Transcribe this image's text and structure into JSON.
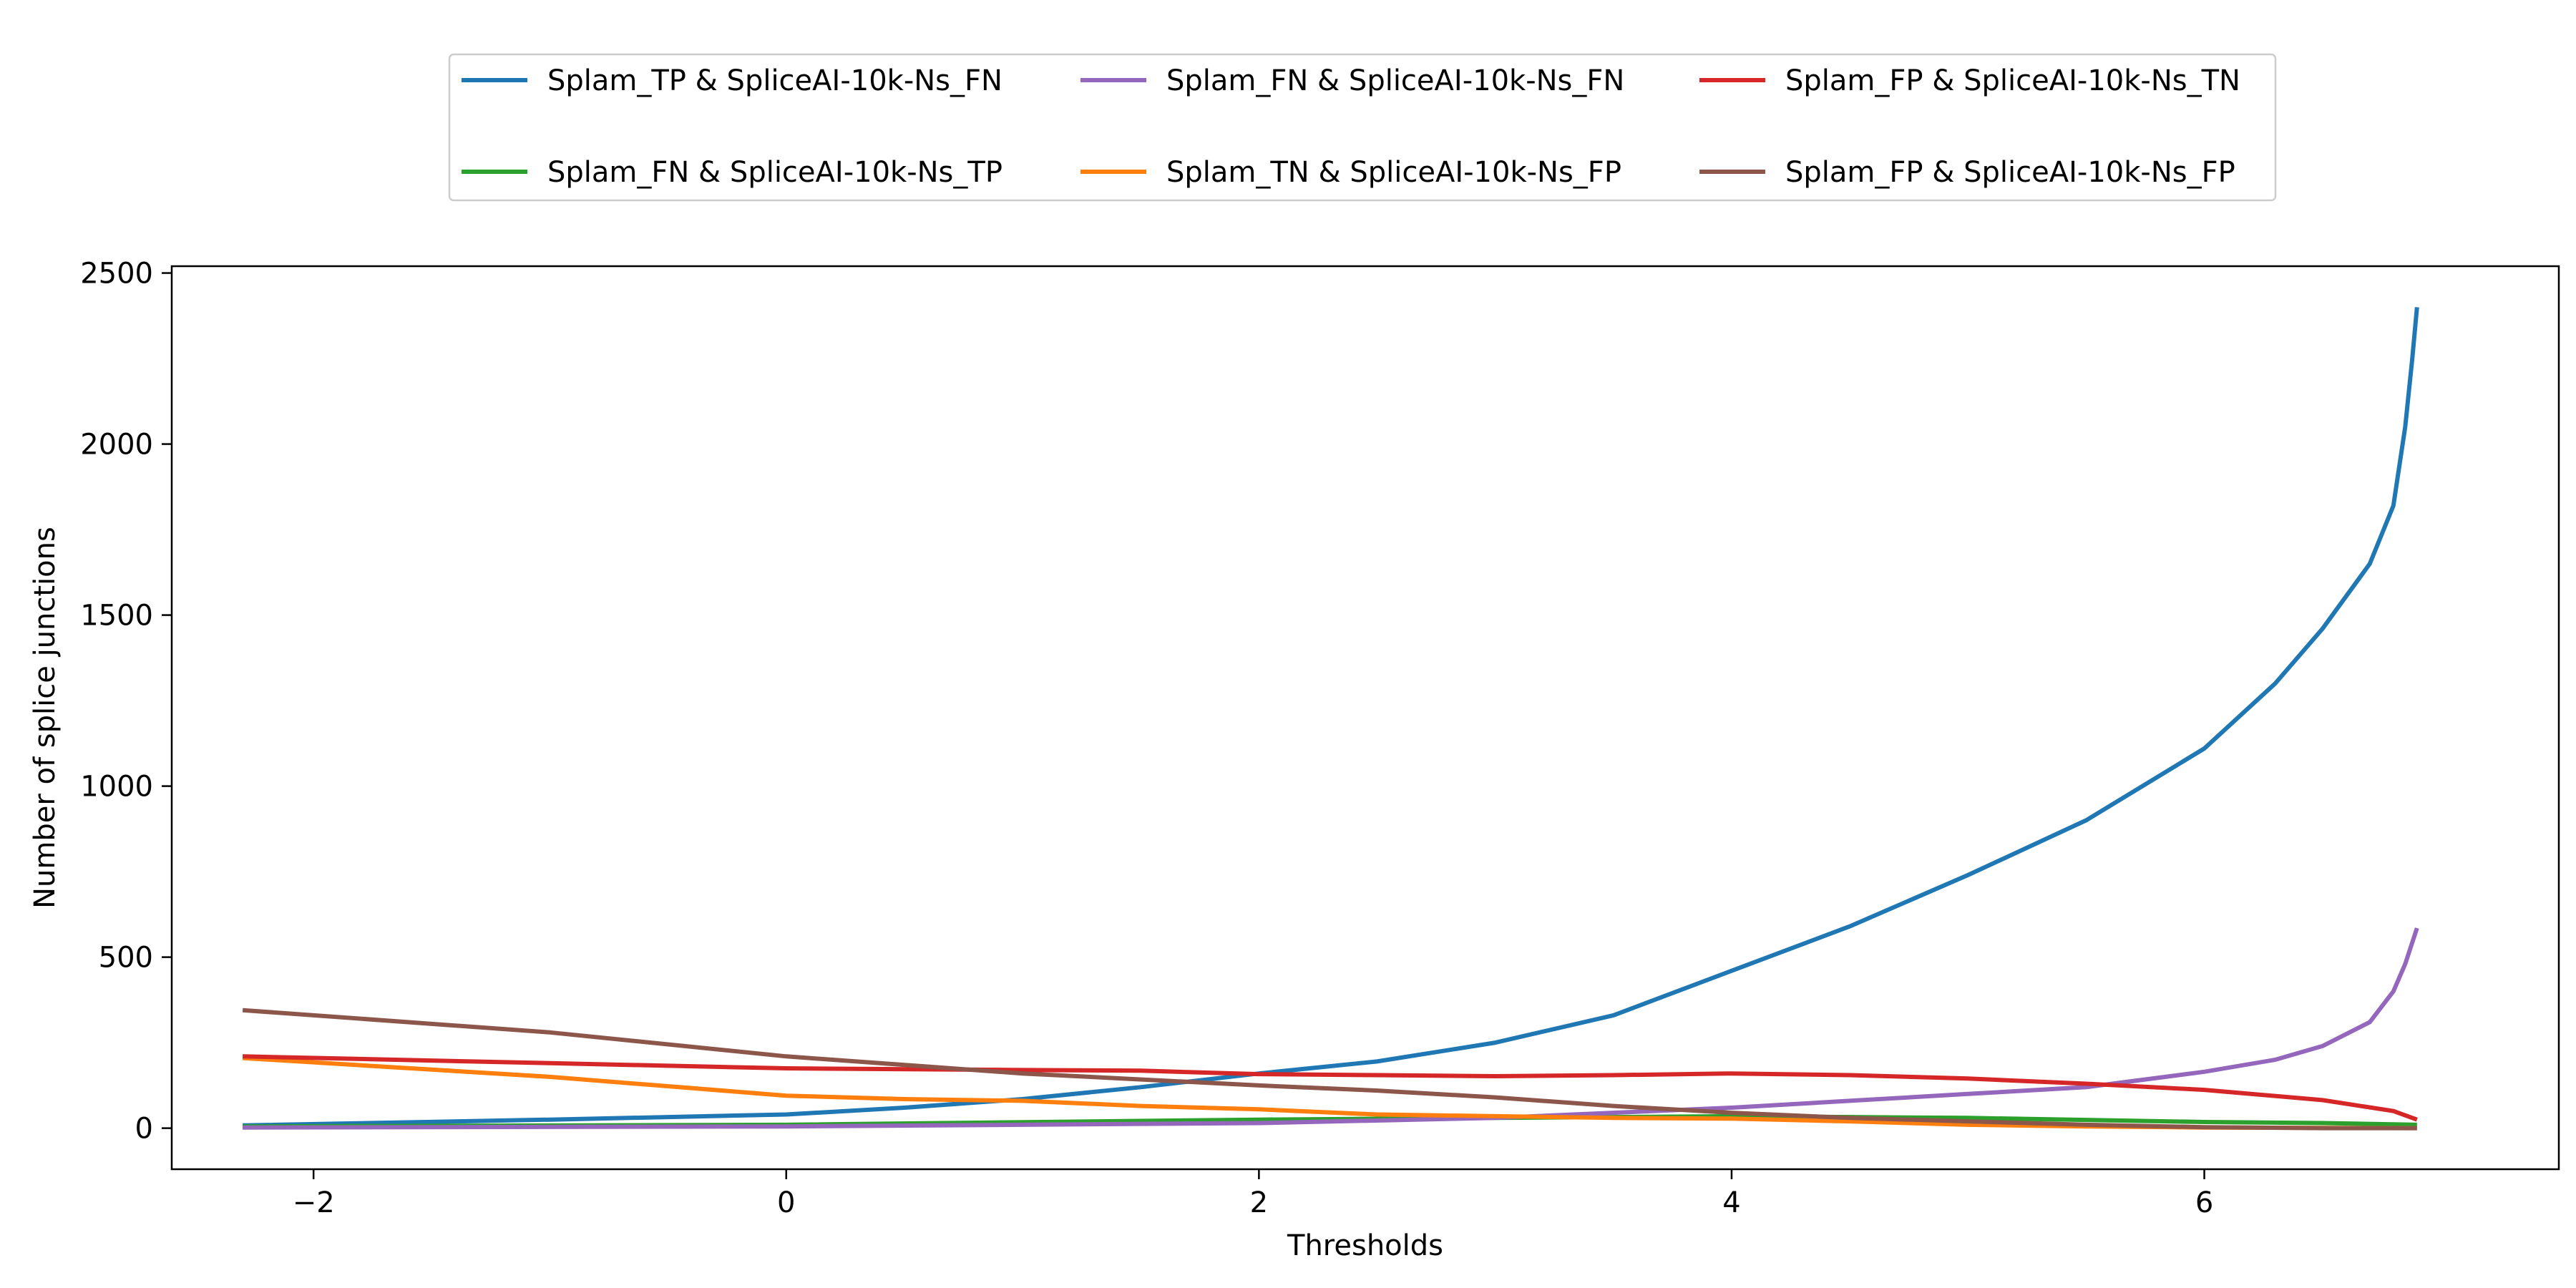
{
  "chart_data": {
    "type": "line",
    "title": "",
    "xlabel": "Thresholds",
    "ylabel": "Number of splice junctions",
    "xlim": [
      -2.6,
      7.5
    ],
    "ylim": [
      -120,
      2520
    ],
    "xticks": [
      -2,
      0,
      2,
      4,
      6
    ],
    "yticks": [
      0,
      500,
      1000,
      1500,
      2000,
      2500
    ],
    "xtick_labels": [
      "−2",
      "0",
      "2",
      "4",
      "6"
    ],
    "ytick_labels": [
      "0",
      "500",
      "1000",
      "1500",
      "2000",
      "2500"
    ],
    "grid": false,
    "legend_position": "top-center",
    "series": [
      {
        "name": "Splam_TP & SpliceAI-10k-Ns_FN",
        "color": "#1f77b4",
        "x": [
          -2.3,
          -1.0,
          0.0,
          0.5,
          1.0,
          1.5,
          2.0,
          2.5,
          3.0,
          3.5,
          4.0,
          4.5,
          5.0,
          5.5,
          6.0,
          6.3,
          6.5,
          6.7,
          6.8,
          6.85,
          6.88,
          6.9
        ],
        "y": [
          8,
          25,
          40,
          60,
          85,
          120,
          160,
          195,
          250,
          330,
          460,
          590,
          740,
          900,
          1110,
          1300,
          1460,
          1650,
          1820,
          2050,
          2250,
          2400
        ]
      },
      {
        "name": "Splam_FN & SpliceAI-10k-Ns_TP",
        "color": "#2ca02c",
        "x": [
          -2.3,
          0.0,
          2.0,
          3.0,
          4.0,
          5.0,
          6.0,
          6.5,
          6.9
        ],
        "y": [
          5,
          10,
          25,
          30,
          35,
          30,
          18,
          15,
          10
        ]
      },
      {
        "name": "Splam_FN & SpliceAI-10k-Ns_FN",
        "color": "#9467bd",
        "x": [
          -2.3,
          0.0,
          2.0,
          3.0,
          3.5,
          4.0,
          4.5,
          5.0,
          5.5,
          6.0,
          6.3,
          6.5,
          6.7,
          6.8,
          6.85,
          6.9
        ],
        "y": [
          2,
          5,
          15,
          30,
          45,
          60,
          80,
          100,
          120,
          165,
          200,
          240,
          310,
          400,
          480,
          585
        ]
      },
      {
        "name": "Splam_TN & SpliceAI-10k-Ns_FP",
        "color": "#ff7f0e",
        "x": [
          -2.3,
          -1.0,
          0.0,
          0.5,
          1.0,
          1.5,
          2.0,
          2.5,
          3.0,
          3.5,
          4.0,
          4.5,
          5.0,
          5.5,
          6.0,
          6.9
        ],
        "y": [
          205,
          150,
          95,
          85,
          80,
          65,
          55,
          40,
          35,
          30,
          28,
          20,
          10,
          5,
          2,
          0
        ]
      },
      {
        "name": "Splam_FP & SpliceAI-10k-Ns_TN",
        "color": "#d62728",
        "x": [
          -2.3,
          -1.0,
          0.0,
          1.0,
          1.5,
          2.0,
          2.5,
          3.0,
          3.5,
          4.0,
          4.5,
          5.0,
          5.5,
          6.0,
          6.5,
          6.8,
          6.9
        ],
        "y": [
          210,
          190,
          175,
          170,
          168,
          158,
          155,
          152,
          155,
          160,
          155,
          145,
          130,
          112,
          82,
          50,
          25
        ]
      },
      {
        "name": "Splam_FP & SpliceAI-10k-Ns_FP",
        "color": "#8c564b",
        "x": [
          -2.3,
          -1.0,
          0.0,
          1.0,
          2.0,
          2.5,
          3.0,
          3.5,
          4.0,
          4.5,
          5.0,
          5.5,
          6.0,
          6.5,
          6.9
        ],
        "y": [
          345,
          280,
          210,
          160,
          125,
          110,
          90,
          65,
          45,
          30,
          20,
          10,
          3,
          0,
          0
        ]
      }
    ]
  }
}
